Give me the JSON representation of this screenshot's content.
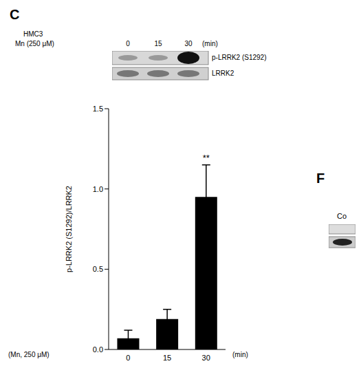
{
  "panel_label": "C",
  "blot": {
    "cell_line": "HMC3",
    "treatment": "Mn (250 μM)",
    "lanes": [
      "0",
      "15",
      "30"
    ],
    "lane_unit": "(min)",
    "bands": [
      "p-LRRK2 (S1292)",
      "LRRK2"
    ]
  },
  "chart_data": {
    "type": "bar",
    "ylabel": "p-LRRK2 (S1292)/LRRK2",
    "xlabel": "(Mn, 250 μM)",
    "x_unit": "(min)",
    "categories": [
      "0",
      "15",
      "30"
    ],
    "values": [
      0.07,
      0.19,
      0.95
    ],
    "errors": [
      0.05,
      0.06,
      0.2
    ],
    "significance": [
      null,
      null,
      "**"
    ],
    "color": "#000000",
    "ylim": [
      0,
      1.5
    ],
    "yticks": [
      {
        "value": 0,
        "label": "0.0"
      },
      0.5,
      {
        "value": 1,
        "label": "1.0"
      },
      1.5
    ]
  },
  "other_panel": {
    "panel_label": "F",
    "text": "Co"
  }
}
